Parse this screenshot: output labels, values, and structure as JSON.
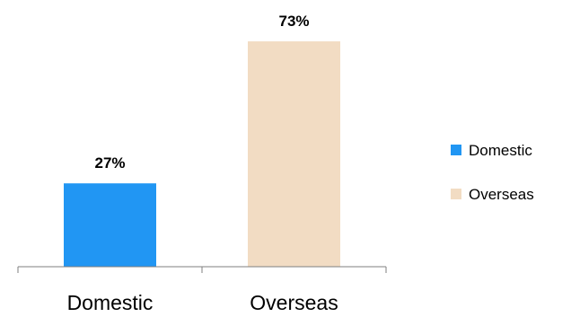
{
  "chart_data": {
    "type": "bar",
    "categories": [
      "Domestic",
      "Overseas"
    ],
    "values": [
      27,
      73
    ],
    "data_labels": [
      "27%",
      "73%"
    ],
    "colors": [
      "#2196F3",
      "#F2DCC3"
    ],
    "axis_color": "#7F7F7F",
    "title": "",
    "xlabel": "",
    "ylabel": "",
    "ylim": [
      0,
      80
    ],
    "grid": false,
    "legend": {
      "position": "right",
      "entries": [
        {
          "label": "Domestic",
          "color": "#2196F3"
        },
        {
          "label": "Overseas",
          "color": "#F2DCC3"
        }
      ]
    }
  }
}
